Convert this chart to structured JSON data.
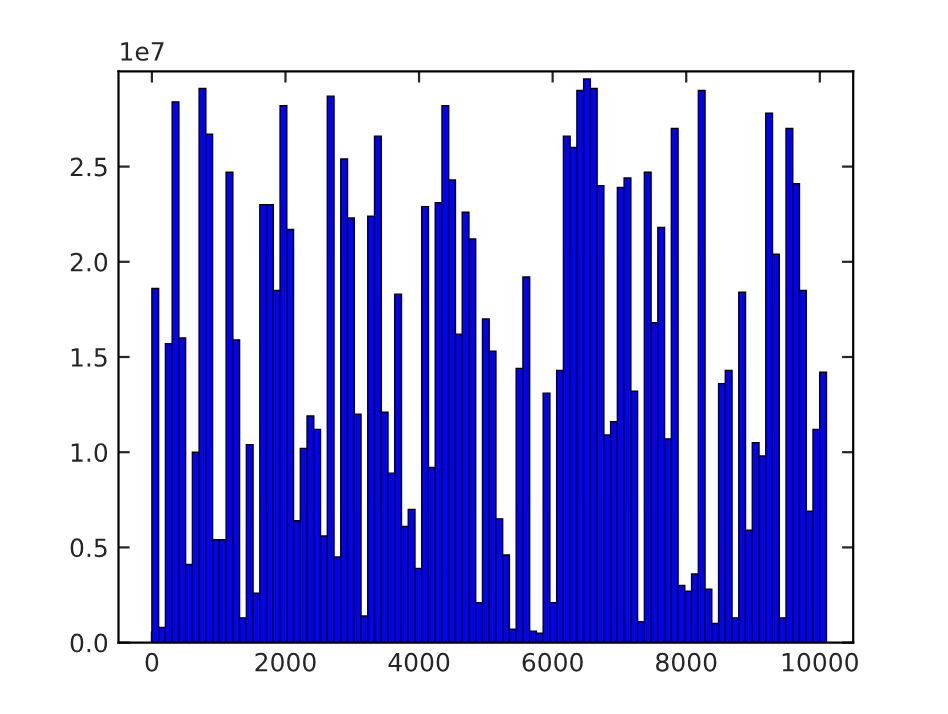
{
  "chart_data": {
    "type": "histogram",
    "bins": [
      0,
      101,
      202,
      303,
      404,
      505,
      606,
      707,
      808,
      909,
      1010,
      1111,
      1212,
      1313,
      1414,
      1515,
      1616,
      1717,
      1818,
      1919,
      2020,
      2121,
      2222,
      2323,
      2424,
      2525,
      2626,
      2727,
      2828,
      2929,
      3030,
      3131,
      3232,
      3333,
      3434,
      3535,
      3636,
      3737,
      3838,
      3939,
      4040,
      4141,
      4242,
      4343,
      4444,
      4545,
      4646,
      4747,
      4848,
      4949,
      5050,
      5151,
      5252,
      5353,
      5454,
      5555,
      5656,
      5757,
      5858,
      5959,
      6060,
      6161,
      6262,
      6363,
      6464,
      6565,
      6666,
      6767,
      6868,
      6969,
      7070,
      7171,
      7272,
      7373,
      7474,
      7575,
      7676,
      7777,
      7878,
      7979,
      8080,
      8181,
      8282,
      8383,
      8484,
      8585,
      8686,
      8787,
      8888,
      8989,
      9090,
      9191,
      9292,
      9393,
      9494,
      9595,
      9696,
      9797,
      9898,
      9999,
      10100
    ],
    "values": [
      1.86,
      0.08,
      1.57,
      2.84,
      1.6,
      0.41,
      1.0,
      2.91,
      2.67,
      0.54,
      0.54,
      2.47,
      1.59,
      0.13,
      1.04,
      0.26,
      2.3,
      2.3,
      1.85,
      2.82,
      2.17,
      0.64,
      1.02,
      1.19,
      1.12,
      0.56,
      2.87,
      0.45,
      2.54,
      2.23,
      1.2,
      0.14,
      2.24,
      2.66,
      1.21,
      0.89,
      1.83,
      0.61,
      0.7,
      0.39,
      2.29,
      0.92,
      2.31,
      2.82,
      2.43,
      1.62,
      2.26,
      2.12,
      0.21,
      1.7,
      1.53,
      0.65,
      0.46,
      0.07,
      1.44,
      1.92,
      0.06,
      0.05,
      1.31,
      0.21,
      1.43,
      2.66,
      2.6,
      2.9,
      2.96,
      2.91,
      2.4,
      1.09,
      1.16,
      2.39,
      2.44,
      1.32,
      0.11,
      2.47,
      1.68,
      2.18,
      1.07,
      2.7,
      0.3,
      0.27,
      0.36,
      2.9,
      0.28,
      0.1,
      1.36,
      1.43,
      0.13,
      1.84,
      0.59,
      1.05,
      0.98,
      2.78,
      2.04,
      0.13,
      2.7,
      2.41,
      1.85,
      0.69,
      1.12,
      1.42
    ],
    "color": "#0000ff",
    "xlim": [
      -500,
      10500
    ],
    "xticks": [
      0,
      2000,
      4000,
      6000,
      8000,
      10000
    ],
    "ylim": [
      0,
      3.0
    ],
    "yticks": [
      {
        "value": 0,
        "label": "0.0"
      },
      0.5,
      {
        "value": 1,
        "label": "1.0"
      },
      1.5,
      {
        "value": 2,
        "label": "2.0"
      },
      2.5
    ],
    "annotations": [
      "1e7"
    ],
    "grid": false
  }
}
